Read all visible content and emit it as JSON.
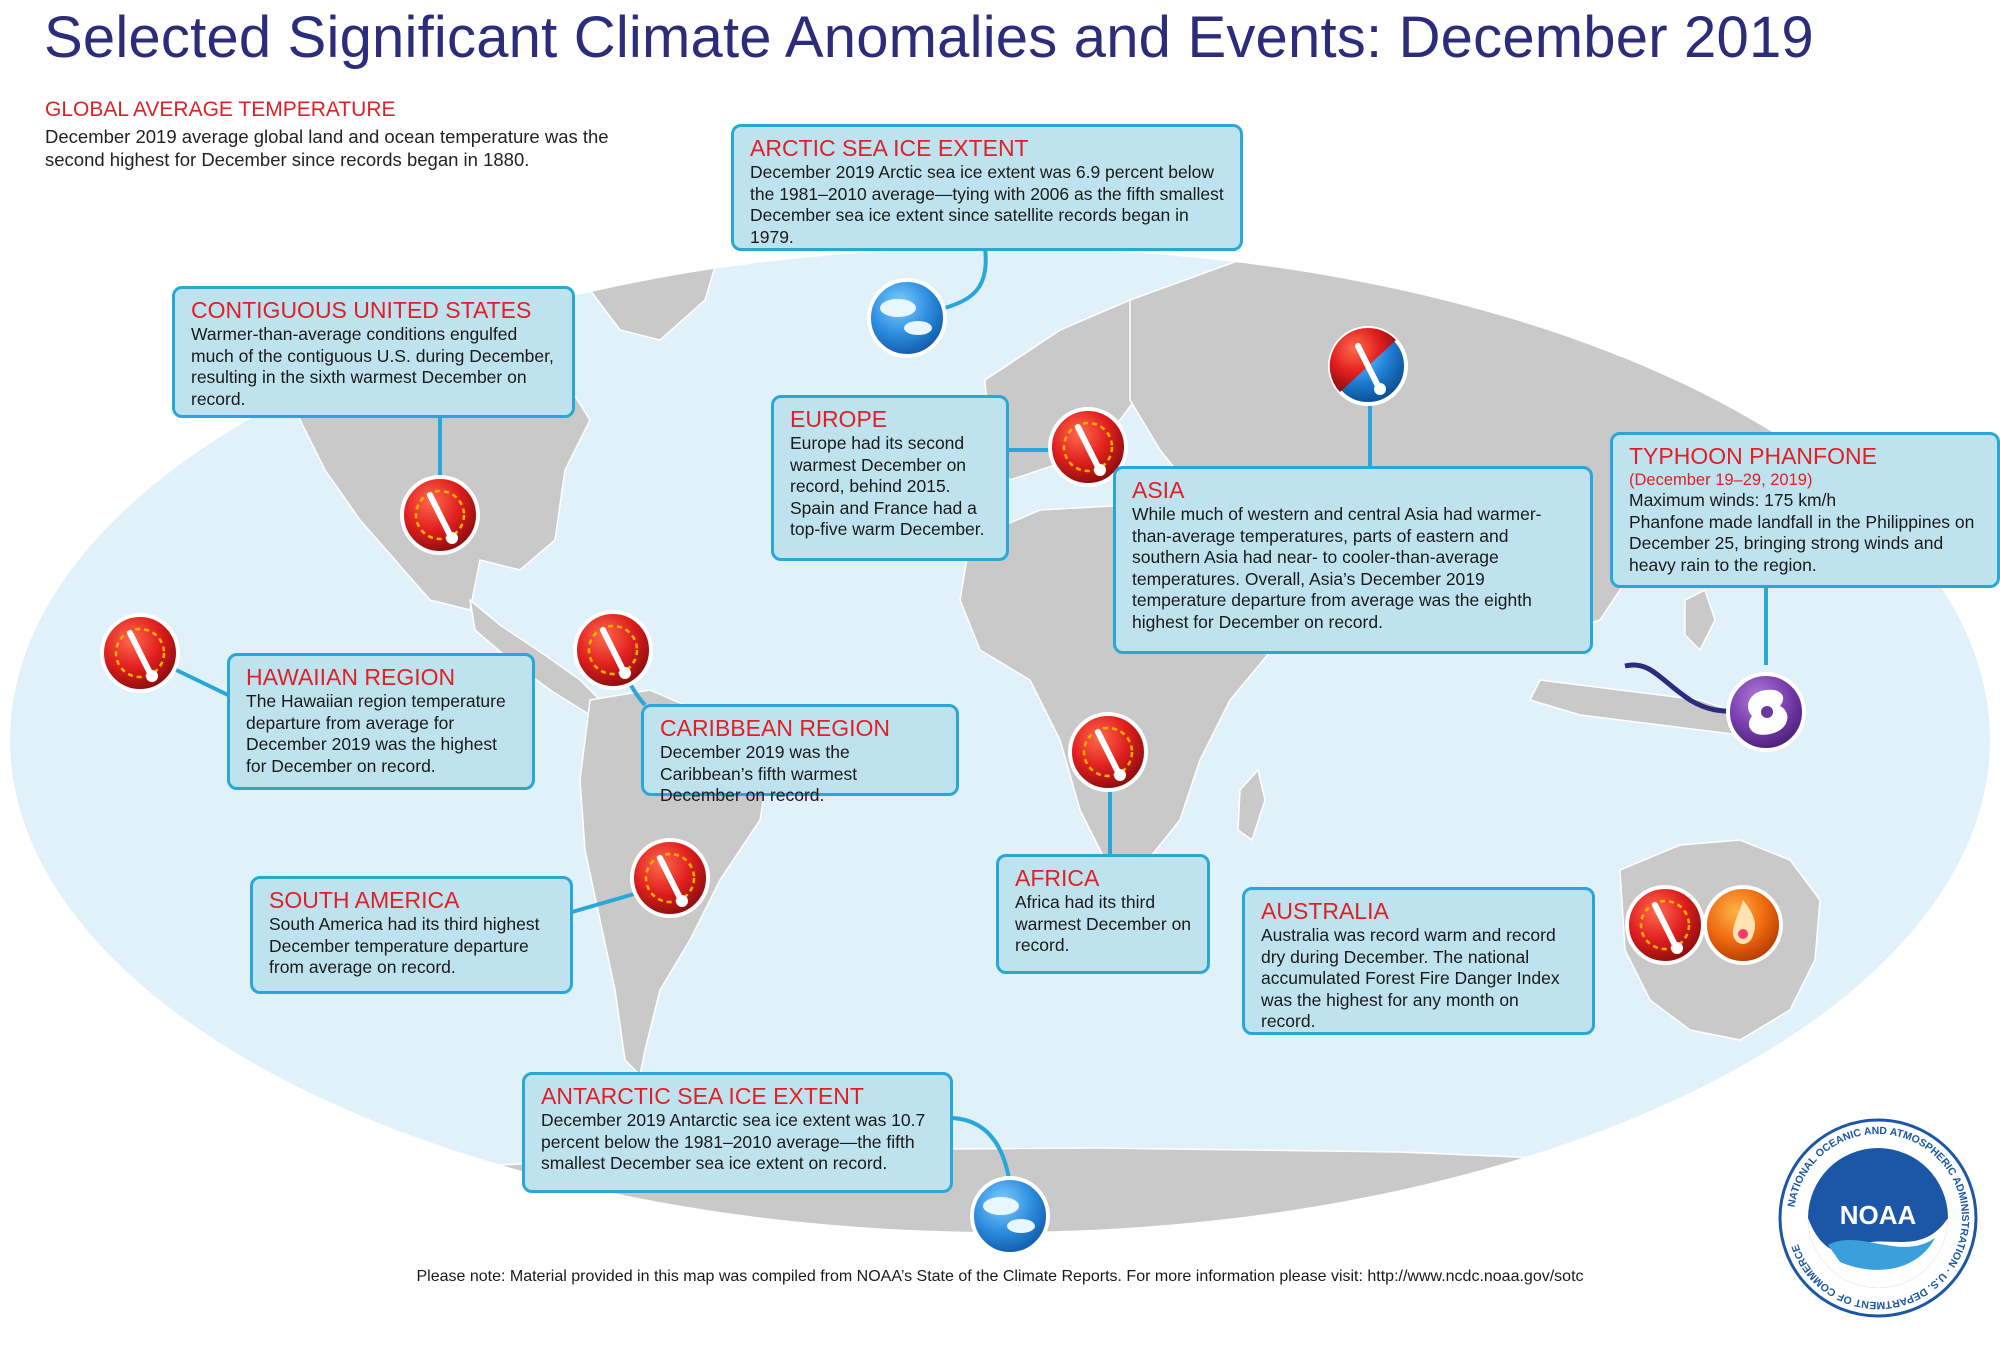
{
  "title": "Selected Significant Climate Anomalies and Events: December 2019",
  "global": {
    "title": "GLOBAL AVERAGE TEMPERATURE",
    "text": "December 2019 average global land and ocean temperature was the second highest for December since records began in 1880."
  },
  "regions": {
    "arctic": {
      "title": "ARCTIC SEA ICE EXTENT",
      "text": "December 2019 Arctic sea ice extent was 6.9 percent below the 1981–2010 average—tying with 2006 as the fifth smallest December sea ice extent since satellite records began in 1979.",
      "icon": "sea-ice-icon"
    },
    "contiguous_us": {
      "title": "CONTIGUOUS UNITED STATES",
      "text": "Warmer-than-average conditions engulfed much of the contiguous U.S. during December, resulting in the sixth warmest December on record.",
      "icon": "warm-thermometer-icon"
    },
    "europe": {
      "title": "EUROPE",
      "text": "Europe had its second warmest December on record, behind 2015. Spain and France had a top-five warm December.",
      "icon": "warm-thermometer-icon"
    },
    "asia": {
      "title": "ASIA",
      "text": "While much of western and central Asia had warmer-than-average temperatures, parts of eastern and southern Asia had near- to cooler-than-average temperatures. Overall, Asia’s December 2019 temperature departure from average was the eighth highest for December on record.",
      "icon": "warm-cool-thermometer-icon"
    },
    "typhoon": {
      "title": "TYPHOON PHANFONE",
      "subtitle": "(December 19–29, 2019)",
      "text": "Maximum winds: 175 km/h\nPhanfone made landfall in the Philippines on December 25, bringing strong winds and heavy rain to the region.",
      "icon": "typhoon-icon"
    },
    "hawaii": {
      "title": "HAWAIIAN REGION",
      "text": "The Hawaiian region temperature departure from average for December 2019 was the highest for December on record.",
      "icon": "warm-thermometer-icon"
    },
    "caribbean": {
      "title": "CARIBBEAN REGION",
      "text": "December 2019 was the Caribbean’s fifth warmest December on record.",
      "icon": "warm-thermometer-icon"
    },
    "africa": {
      "title": "AFRICA",
      "text": "Africa had its third warmest December on record.",
      "icon": "warm-thermometer-icon"
    },
    "south_america": {
      "title": "SOUTH AMERICA",
      "text": "South America had its third highest December temperature departure from average on record.",
      "icon": "warm-thermometer-icon"
    },
    "australia": {
      "title": "AUSTRALIA",
      "text": "Australia was record warm and record dry during December. The national accumulated Forest Fire Danger Index was the highest for any month on record.",
      "icons": [
        "warm-thermometer-icon",
        "fire-icon"
      ]
    },
    "antarctic": {
      "title": "ANTARCTIC SEA ICE EXTENT",
      "text": "December 2019 Antarctic sea ice extent was 10.7 percent below the 1981–2010 average—the fifth smallest December sea ice extent on record.",
      "icon": "sea-ice-icon"
    }
  },
  "footnote": "Please note: Material provided in this map was compiled from NOAA’s State of the Climate Reports. For more information please visit: http://www.ncdc.noaa.gov/sotc",
  "logo": {
    "text": "NOAA",
    "ring_text": "NATIONAL OCEANIC AND ATMOSPHERIC ADMINISTRATION · U.S. DEPARTMENT OF COMMERCE"
  },
  "colors": {
    "title": "#2b2d7a",
    "accent_red": "#e02026",
    "box_fill": "#bfe3ee",
    "box_border": "#29a8d8",
    "ocean": "#e1f1f9",
    "land": "#c9c9c9",
    "noaa_blue": "#1b57a6"
  }
}
